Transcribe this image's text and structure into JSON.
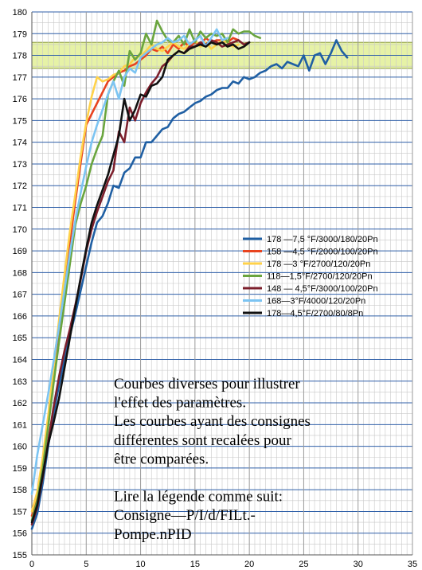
{
  "chart_data": {
    "type": "line",
    "title": "",
    "xlabel": "",
    "ylabel": "",
    "xlim": [
      0,
      35
    ],
    "ylim": [
      155,
      180
    ],
    "xticks": [
      "0",
      "5",
      "10",
      "15",
      "20",
      "25",
      "30",
      "35"
    ],
    "yticks": [
      "155",
      "156",
      "157",
      "158",
      "159",
      "160",
      "161",
      "162",
      "163",
      "164",
      "165",
      "166",
      "167",
      "168",
      "169",
      "170",
      "171",
      "172",
      "173",
      "174",
      "175",
      "176",
      "177",
      "178",
      "179",
      "180"
    ],
    "grid": true,
    "band": {
      "y0": 177.4,
      "y1": 178.6,
      "color": "#e6f2a6"
    },
    "legend_position": "right-middle",
    "series": [
      {
        "name": "178 —7,5 °F/3000/180/20Pn",
        "color": "#1f5fa3",
        "x": [
          0,
          0.5,
          1,
          1.5,
          2,
          2.5,
          3,
          3.5,
          4,
          4.5,
          5,
          5.5,
          6,
          6.5,
          7,
          7.5,
          8,
          8.5,
          9,
          9.5,
          10,
          10.5,
          11,
          11.5,
          12,
          12.5,
          13,
          13.5,
          14,
          14.5,
          15,
          15.5,
          16,
          16.5,
          17,
          17.5,
          18,
          18.5,
          19,
          19.5,
          20,
          20.5,
          21,
          21.5,
          22,
          22.5,
          23,
          23.5,
          24,
          24.5,
          25,
          25.5,
          26,
          26.5,
          27,
          27.5,
          28,
          28.5,
          29
        ],
        "y": [
          156.2,
          156.9,
          158.3,
          160,
          161.5,
          162.8,
          164,
          165.1,
          166.1,
          167.2,
          168.3,
          169.4,
          170.3,
          170.6,
          171.2,
          172,
          171.9,
          172.6,
          172.8,
          173.3,
          173.3,
          174,
          174,
          174.3,
          174.6,
          174.7,
          175.1,
          175.3,
          175.4,
          175.6,
          175.8,
          175.9,
          176.1,
          176.2,
          176.4,
          176.5,
          176.5,
          176.8,
          176.7,
          177,
          176.9,
          177,
          177.2,
          177.3,
          177.5,
          177.6,
          177.4,
          177.7,
          177.6,
          177.5,
          178,
          177.3,
          178,
          178.1,
          177.6,
          178.1,
          178.7,
          178.2,
          177.9
        ]
      },
      {
        "name": "158 —4,5 °F/2000/100/20Pn",
        "color": "#e8431e",
        "x": [
          0,
          0.5,
          1,
          1.5,
          2,
          2.5,
          3,
          3.5,
          4,
          4.5,
          5,
          5.5,
          6,
          6.5,
          7,
          7.5,
          8,
          8.5,
          9,
          9.5,
          10,
          10.5,
          11,
          11.5,
          12,
          12.5,
          13,
          13.5,
          14,
          14.5,
          15,
          15.5,
          16,
          16.5,
          17,
          17.5,
          18,
          18.5,
          19
        ],
        "y": [
          156.8,
          157.6,
          159.2,
          161,
          163.2,
          165.4,
          167.4,
          169.4,
          171.3,
          173.1,
          174.8,
          175.3,
          175.8,
          176.3,
          176.8,
          177,
          177.2,
          177.3,
          177.5,
          177.6,
          177.8,
          178,
          178.3,
          178.2,
          178.4,
          178.1,
          178.5,
          178.3,
          178.6,
          178.4,
          178.6,
          178.5,
          178.8,
          178.6,
          178.7,
          178.7,
          178.6,
          178.8,
          178.7
        ]
      },
      {
        "name": "178 —3 °F/2700/120/20Pn",
        "color": "#ffd24a",
        "x": [
          0,
          0.5,
          1,
          1.5,
          2,
          2.5,
          3,
          3.5,
          4,
          4.5,
          5,
          5.5,
          6,
          6.5,
          7,
          7.5,
          8,
          8.5,
          9,
          9.5,
          10,
          10.5,
          11,
          11.5,
          12,
          12.5,
          13,
          13.5,
          14,
          14.5,
          15,
          15.5,
          16,
          16.5,
          17,
          17.5,
          18,
          18.5,
          19
        ],
        "y": [
          157,
          157.9,
          159.5,
          161.4,
          163.6,
          165.8,
          167.9,
          169.9,
          171.6,
          173.4,
          174.9,
          176.1,
          177,
          176.8,
          176.9,
          177.1,
          177.2,
          177.5,
          177.6,
          177.9,
          178,
          178.2,
          178.5,
          178.3,
          178.2,
          178.4,
          178.6,
          178.4,
          178.3,
          178.5,
          178.7,
          178.4,
          178.6,
          178.3,
          178.5,
          178.7,
          178.6,
          178.4,
          178.5
        ]
      },
      {
        "name": "118—1,5°F/2700/120/20Pn",
        "color": "#6aa53e",
        "x": [
          0,
          0.5,
          1,
          1.5,
          2,
          2.5,
          3,
          3.5,
          4,
          4.5,
          5,
          5.5,
          6,
          6.5,
          7,
          7.5,
          8,
          8.5,
          9,
          9.5,
          10,
          10.5,
          11,
          11.5,
          12,
          12.5,
          13,
          13.5,
          14,
          14.5,
          15,
          15.5,
          16,
          16.5,
          17,
          17.5,
          18,
          18.5,
          19,
          19.5,
          20,
          20.5,
          21
        ],
        "y": [
          156.6,
          157.5,
          159,
          160.9,
          162.9,
          164.8,
          166.6,
          168.4,
          170.2,
          171.2,
          172,
          173,
          173.7,
          174.3,
          176.2,
          176.8,
          177.3,
          176.6,
          178.2,
          177.8,
          178.1,
          179,
          178.5,
          179.6,
          179.1,
          178.7,
          178.6,
          178.9,
          178.5,
          179.2,
          178.6,
          179.1,
          178.8,
          179,
          178.9,
          179,
          178.6,
          179.2,
          179,
          179.1,
          179.1,
          178.9,
          178.8
        ]
      },
      {
        "name": "148 — 4,5°F/3000/100/20Pn",
        "color": "#7c1f2c",
        "x": [
          0,
          0.5,
          1,
          1.5,
          2,
          2.5,
          3,
          3.5,
          4,
          4.5,
          5,
          5.5,
          6,
          6.5,
          7,
          7.5,
          8,
          8.5,
          9,
          9.5,
          10,
          10.5,
          11,
          11.5,
          12,
          12.5,
          13,
          13.5,
          14,
          14.5,
          15,
          15.5,
          16,
          16.5,
          17,
          17.5,
          18,
          18.5,
          19,
          19.5,
          20
        ],
        "y": [
          156.4,
          157.2,
          158.6,
          160.2,
          161.8,
          163.2,
          164.4,
          165.4,
          166.5,
          167.7,
          169,
          170,
          170.8,
          171.5,
          172.2,
          172.7,
          174.5,
          174,
          175.6,
          175,
          175.8,
          176.3,
          176.7,
          177,
          177.5,
          177.7,
          178,
          178.2,
          178.1,
          178.4,
          178.4,
          178.6,
          178.5,
          178.7,
          178.6,
          178.4,
          178.5,
          178.6,
          178.7,
          178.5,
          178.6
        ]
      },
      {
        "name": "168—3°F/4000/120/20Pn",
        "color": "#7cc4f2",
        "x": [
          0,
          0.5,
          1,
          1.5,
          2,
          2.5,
          3,
          3.5,
          4,
          4.5,
          5,
          5.5,
          6,
          6.5,
          7,
          7.5,
          8,
          8.5,
          9,
          9.5,
          10,
          10.5,
          11,
          11.5,
          12,
          12.5,
          13,
          13.5,
          14,
          14.5,
          15,
          15.5,
          16,
          16.5,
          17,
          17.5,
          18
        ],
        "y": [
          157.8,
          159.6,
          161,
          162.4,
          163.9,
          165.5,
          167.2,
          168.9,
          170.4,
          171.7,
          172.9,
          174,
          174.8,
          175.5,
          176.2,
          176.8,
          176,
          177,
          177.4,
          177.2,
          177.9,
          178.1,
          178.3,
          178.5,
          178.6,
          178.8,
          178.6,
          178.7,
          178.9,
          178.5,
          178.7,
          178.9,
          178.4,
          178.8,
          179.2,
          178.7,
          178.8
        ]
      },
      {
        "name": "178—4,5°F/2700/80/8Pn",
        "color": "#111111",
        "x": [
          0,
          0.5,
          1,
          1.5,
          2,
          2.5,
          3,
          3.5,
          4,
          4.5,
          5,
          5.5,
          6,
          6.5,
          7,
          7.5,
          8,
          8.5,
          9,
          9.5,
          10,
          10.5,
          11,
          11.5,
          12,
          12.5,
          13,
          13.5,
          14,
          14.5,
          15,
          15.5,
          16,
          16.5,
          17,
          17.5,
          18,
          18.5,
          19,
          19.5,
          20
        ],
        "y": [
          156.5,
          157.3,
          158.7,
          160.1,
          161.1,
          162.2,
          163.6,
          165,
          166.4,
          167.8,
          169.1,
          170.3,
          171.1,
          171.8,
          172.5,
          173.4,
          174.3,
          176,
          175,
          175.5,
          176.2,
          176.1,
          176.6,
          176.7,
          177,
          177.8,
          178,
          178.2,
          178.1,
          178.3,
          178.4,
          178.5,
          178.4,
          178.6,
          178.5,
          178.6,
          178.4,
          178.5,
          178.3,
          178.4,
          178.6
        ]
      }
    ],
    "annotation": {
      "lines": [
        "Courbes diverses pour illustrer",
        "l'effet des paramètres.",
        "Les courbes ayant des consignes",
        "différentes sont recalées pour",
        "être comparées.",
        "",
        "Lire la légende comme suit:",
        "Consigne—P/I/d/FILt.-",
        "Pompe.nPID"
      ]
    }
  }
}
